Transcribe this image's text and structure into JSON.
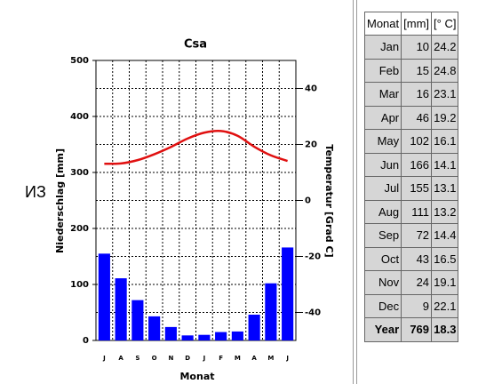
{
  "side_text": "ИЗ",
  "chart_data": {
    "type": "bar",
    "title": "Csa",
    "x_label": "Monat",
    "y_label": "Niederschlag [mm]",
    "y2_label": "Temperatur [Grad C]",
    "categories": [
      "J",
      "A",
      "S",
      "O",
      "N",
      "D",
      "J",
      "F",
      "M",
      "A",
      "M",
      "J"
    ],
    "ylim": [
      0,
      500
    ],
    "yticks": [
      0,
      100,
      200,
      300,
      400,
      500
    ],
    "y2lim": [
      -50,
      50
    ],
    "y2ticks": [
      -40,
      -20,
      0,
      20,
      40
    ],
    "grid": true,
    "series": [
      {
        "type": "bar",
        "axis": "y",
        "color": "#0000ff",
        "values": [
          155,
          111,
          72,
          43,
          24,
          9,
          10,
          15,
          16,
          46,
          102,
          166
        ]
      },
      {
        "type": "line",
        "axis": "y2",
        "color": "#e01010",
        "values": [
          13.1,
          13.2,
          14.4,
          16.5,
          19.1,
          22.1,
          24.2,
          24.8,
          23.1,
          19.2,
          16.1,
          14.1
        ]
      }
    ]
  },
  "table": {
    "header": [
      "Monat",
      "[mm]",
      "[° C]"
    ],
    "rows": [
      [
        "Jan",
        10,
        24.2
      ],
      [
        "Feb",
        15,
        24.8
      ],
      [
        "Mar",
        16,
        23.1
      ],
      [
        "Apr",
        46,
        19.2
      ],
      [
        "May",
        102,
        16.1
      ],
      [
        "Jun",
        166,
        14.1
      ],
      [
        "Jul",
        155,
        13.1
      ],
      [
        "Aug",
        111,
        13.2
      ],
      [
        "Sep",
        72,
        14.4
      ],
      [
        "Oct",
        43,
        16.5
      ],
      [
        "Nov",
        24,
        19.1
      ],
      [
        "Dec",
        9,
        22.1
      ]
    ],
    "footer": [
      "Year",
      769,
      18.3
    ]
  }
}
